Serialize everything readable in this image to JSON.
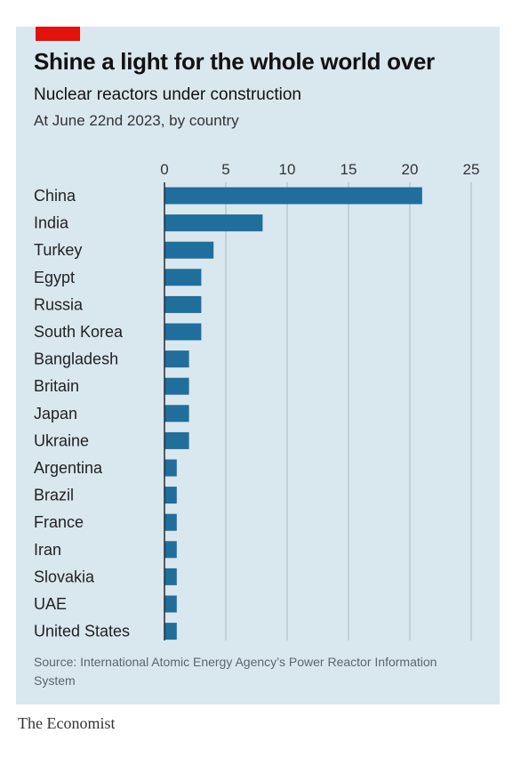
{
  "title": "Shine a light for the whole world over",
  "subtitle": "Nuclear reactors under construction",
  "subsubtitle": "At June 22nd 2023, by country",
  "source": "Source: International Atomic Energy Agency’s Power Reactor Information System",
  "brand": "The Economist",
  "colors": {
    "bar": "#1f6e9c",
    "background": "#d9e7ef",
    "accent": "#e3120b",
    "grid": "#a9b8c1"
  },
  "chart_data": {
    "type": "bar",
    "orientation": "horizontal",
    "categories": [
      "China",
      "India",
      "Turkey",
      "Egypt",
      "Russia",
      "South Korea",
      "Bangladesh",
      "Britain",
      "Japan",
      "Ukraine",
      "Argentina",
      "Brazil",
      "France",
      "Iran",
      "Slovakia",
      "UAE",
      "United States"
    ],
    "values": [
      21,
      8,
      4,
      3,
      3,
      3,
      2,
      2,
      2,
      2,
      1,
      1,
      1,
      1,
      1,
      1,
      1
    ],
    "xlim": [
      0,
      25
    ],
    "xticks": [
      0,
      5,
      10,
      15,
      20,
      25
    ],
    "axis_position": "top",
    "grid": true,
    "title": "Shine a light for the whole world over",
    "xlabel": "",
    "ylabel": ""
  }
}
